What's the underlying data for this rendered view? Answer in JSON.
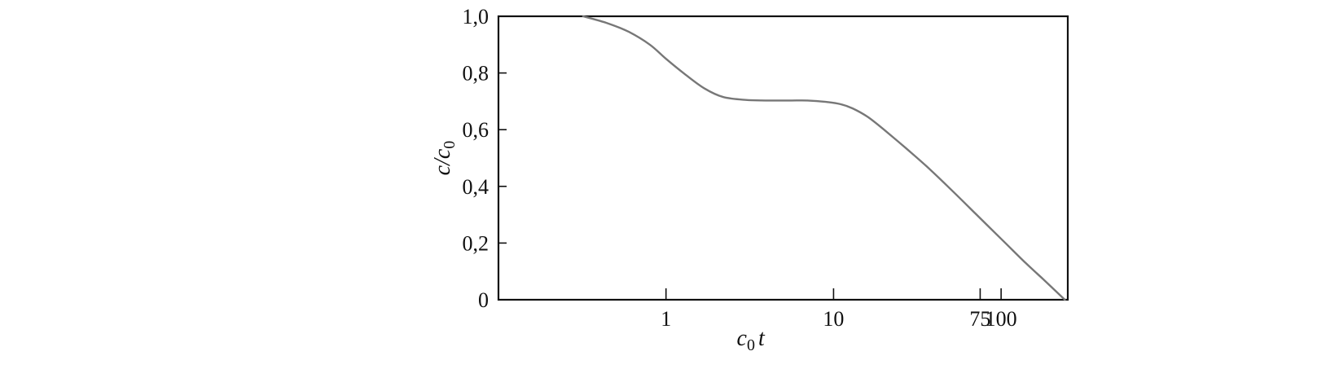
{
  "chart_data": {
    "type": "line",
    "title": "",
    "xlabel_main": "c",
    "xlabel_sub": "0",
    "xlabel_suffix": "t",
    "ylabel_main": "c/c",
    "ylabel_sub": "0",
    "x_scale": "log",
    "xlim": [
      0.1,
      250
    ],
    "ylim": [
      0,
      1.0
    ],
    "x_ticks": [
      {
        "value": 1,
        "label": "1"
      },
      {
        "value": 10,
        "label": "10"
      },
      {
        "value": 75,
        "label": "75"
      },
      {
        "value": 100,
        "label": "100"
      }
    ],
    "y_ticks": [
      {
        "value": 0,
        "label": "0"
      },
      {
        "value": 0.2,
        "label": "0,2"
      },
      {
        "value": 0.4,
        "label": "0,4"
      },
      {
        "value": 0.6,
        "label": "0,6"
      },
      {
        "value": 0.8,
        "label": "0,8"
      },
      {
        "value": 1.0,
        "label": "1,0"
      }
    ],
    "grid": false,
    "legend": "none",
    "line_color": "#777777",
    "series": [
      {
        "x": [
          0.32,
          0.45,
          0.6,
          0.8,
          1.0,
          1.3,
          1.7,
          2.2,
          3.0,
          4.0,
          5.5,
          7.0,
          9.0,
          11,
          13,
          16,
          20,
          27,
          36,
          50,
          70,
          100,
          140,
          180,
          240
        ],
        "y": [
          1.0,
          0.975,
          0.945,
          0.9,
          0.85,
          0.795,
          0.745,
          0.715,
          0.705,
          0.703,
          0.703,
          0.703,
          0.698,
          0.69,
          0.675,
          0.645,
          0.6,
          0.535,
          0.47,
          0.39,
          0.305,
          0.215,
          0.13,
          0.07,
          0.0
        ]
      }
    ]
  }
}
